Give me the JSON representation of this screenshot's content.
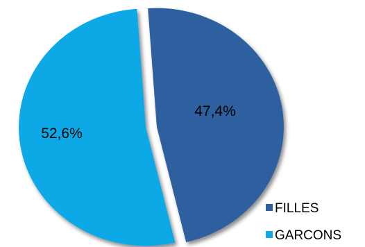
{
  "chart_data": {
    "type": "pie",
    "title": "",
    "slices": [
      {
        "label": "FILLES",
        "value": 47.4,
        "display": "47,4%",
        "color": "#2E5E9E"
      },
      {
        "label": "GARCONS",
        "value": 52.6,
        "display": "52,6%",
        "color": "#10A9E6"
      }
    ],
    "legend": {
      "placement": "bottom-right",
      "entries": [
        "FILLES",
        "GARCONS"
      ]
    },
    "exploded": true,
    "style": "3d-shadow"
  }
}
